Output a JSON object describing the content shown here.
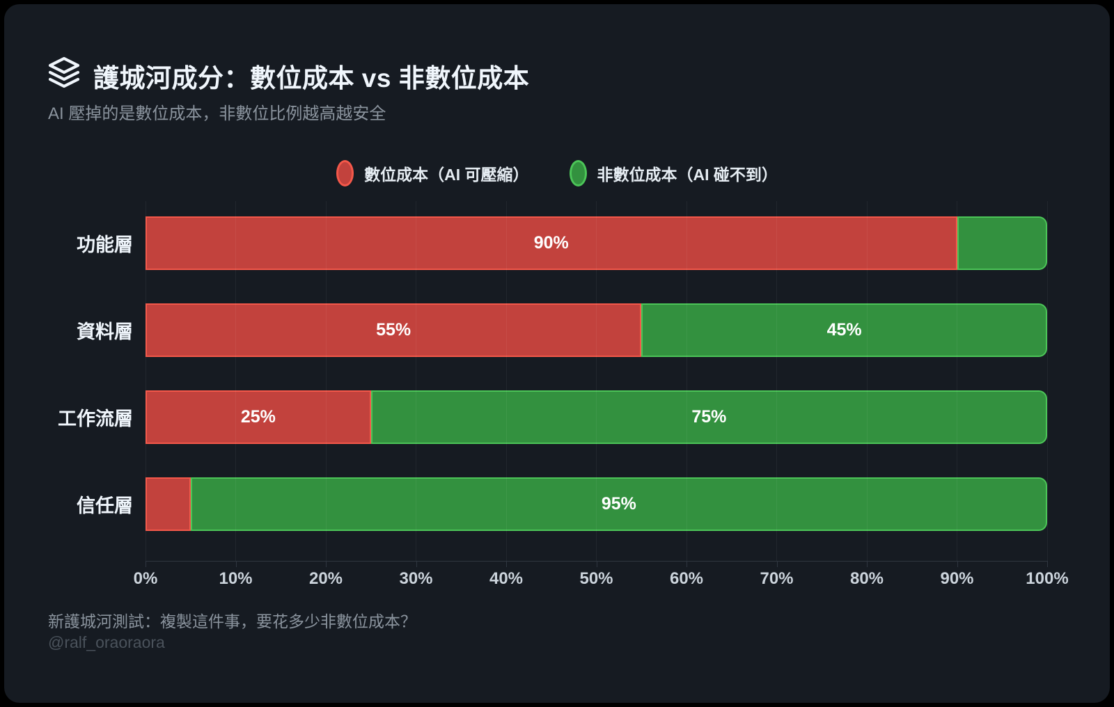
{
  "panel": {
    "background": "#161b22"
  },
  "header": {
    "icon": "layers-icon",
    "title": "護城河成分：數位成本 vs 非數位成本",
    "subtitle": "AI 壓掉的是數位成本，非數位比例越高越安全"
  },
  "legend": [
    {
      "label": "數位成本（AI 可壓縮）",
      "fill": "#c2423d",
      "border": "#f4584a"
    },
    {
      "label": "非數位成本（AI 碰不到）",
      "fill": "#33913f",
      "border": "#4cc558"
    }
  ],
  "chart_data": {
    "type": "bar",
    "orientation": "horizontal",
    "stacked": true,
    "title": "護城河成分：數位成本 vs 非數位成本",
    "categories": [
      "功能層",
      "資料層",
      "工作流層",
      "信任層"
    ],
    "series": [
      {
        "name": "數位成本（AI 可壓縮）",
        "fill": "#c2423d",
        "border": "#f4584a",
        "values": [
          90,
          55,
          25,
          5
        ]
      },
      {
        "name": "非數位成本（AI 碰不到）",
        "fill": "#33913f",
        "border": "#4cc558",
        "values": [
          10,
          45,
          75,
          95
        ]
      }
    ],
    "xlim": [
      0,
      100
    ],
    "x_ticks": [
      "0%",
      "10%",
      "20%",
      "30%",
      "40%",
      "50%",
      "60%",
      "70%",
      "80%",
      "90%",
      "100%"
    ],
    "grid": true,
    "legend_position": "top",
    "value_label_suffix": "%",
    "min_label_threshold": 15
  },
  "footer": {
    "note": "新護城河測試：複製這件事，要花多少非數位成本？",
    "handle": "@ralf_oraoraora"
  }
}
